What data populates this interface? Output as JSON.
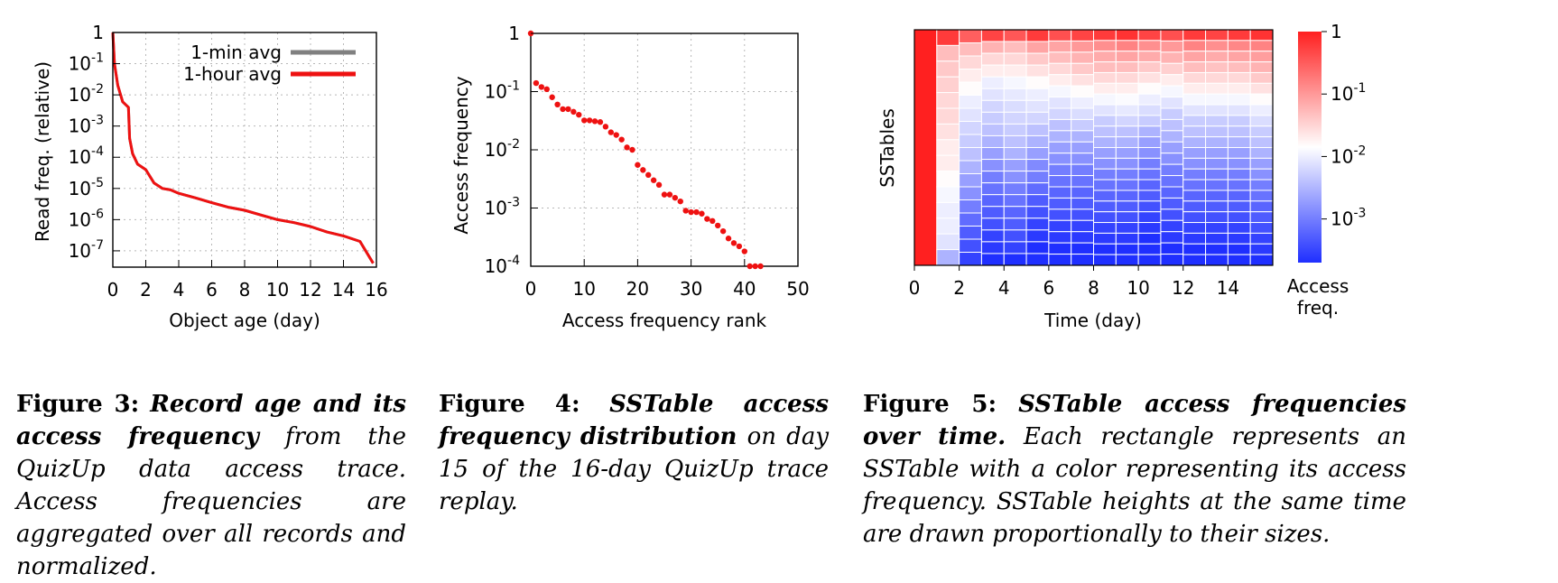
{
  "chart_data": [
    {
      "type": "line",
      "xlabel": "Object age (day)",
      "ylabel": "Read freq. (relative)",
      "xlim": [
        0,
        16
      ],
      "ylim": [
        3e-08,
        1
      ],
      "yscale": "log",
      "xticks": [
        0,
        2,
        4,
        6,
        8,
        10,
        12,
        14,
        16
      ],
      "ytick_labels": [
        {
          "base": "1",
          "exp": "",
          "value": 1
        },
        {
          "base": "10",
          "exp": "-1",
          "value": 0.1
        },
        {
          "base": "10",
          "exp": "-2",
          "value": 0.01
        },
        {
          "base": "10",
          "exp": "-3",
          "value": 0.001
        },
        {
          "base": "10",
          "exp": "-4",
          "value": 0.0001
        },
        {
          "base": "10",
          "exp": "-5",
          "value": 1e-05
        },
        {
          "base": "10",
          "exp": "-6",
          "value": 1e-06
        },
        {
          "base": "10",
          "exp": "-7",
          "value": 1e-07
        }
      ],
      "grid": true,
      "legend_position": "top-right",
      "series": [
        {
          "name": "1-min avg",
          "color": "#808080",
          "x": [
            0,
            0.1,
            0.3,
            0.6,
            0.95,
            1.02,
            1.2,
            1.5,
            2,
            2.5,
            3,
            3.5,
            4,
            5,
            6,
            7,
            8,
            9,
            10,
            11,
            12,
            13,
            14,
            15,
            15.8
          ],
          "y": [
            1,
            0.1,
            0.02,
            0.006,
            0.004,
            0.0004,
            0.00013,
            6e-05,
            4e-05,
            1.5e-05,
            1e-05,
            9e-06,
            7e-06,
            5e-06,
            3.5e-06,
            2.5e-06,
            2e-06,
            1.4e-06,
            1e-06,
            8e-07,
            6e-07,
            4e-07,
            3e-07,
            2e-07,
            4e-08
          ]
        },
        {
          "name": "1-hour avg",
          "color": "#ee1111",
          "x": [
            0,
            0.1,
            0.3,
            0.6,
            0.95,
            1.02,
            1.2,
            1.5,
            2,
            2.5,
            3,
            3.5,
            4,
            5,
            6,
            7,
            8,
            9,
            10,
            11,
            12,
            13,
            14,
            15,
            15.8
          ],
          "y": [
            1,
            0.1,
            0.02,
            0.006,
            0.004,
            0.0004,
            0.00013,
            6e-05,
            4e-05,
            1.5e-05,
            1e-05,
            9e-06,
            7e-06,
            5e-06,
            3.5e-06,
            2.5e-06,
            2e-06,
            1.4e-06,
            1e-06,
            8e-07,
            6e-07,
            4e-07,
            3e-07,
            2e-07,
            4e-08
          ]
        }
      ]
    },
    {
      "type": "scatter",
      "xlabel": "Access frequency rank",
      "ylabel": "Access frequency",
      "xlim": [
        0,
        50
      ],
      "ylim": [
        0.0001,
        1
      ],
      "yscale": "log",
      "xticks": [
        0,
        10,
        20,
        30,
        40,
        50
      ],
      "ytick_labels": [
        {
          "base": "1",
          "exp": "",
          "value": 1
        },
        {
          "base": "10",
          "exp": "-1",
          "value": 0.1
        },
        {
          "base": "10",
          "exp": "-2",
          "value": 0.01
        },
        {
          "base": "10",
          "exp": "-3",
          "value": 0.001
        },
        {
          "base": "10",
          "exp": "-4",
          "value": 0.0001
        }
      ],
      "grid": true,
      "color": "#ee1111",
      "x": [
        0,
        1,
        2,
        3,
        4,
        5,
        6,
        7,
        8,
        9,
        10,
        11,
        12,
        13,
        14,
        15,
        16,
        17,
        18,
        19,
        20,
        21,
        22,
        23,
        24,
        25,
        26,
        27,
        28,
        29,
        30,
        31,
        32,
        33,
        34,
        35,
        36,
        37,
        38,
        39,
        40,
        41,
        42,
        43
      ],
      "y": [
        1,
        0.14,
        0.12,
        0.11,
        0.08,
        0.06,
        0.05,
        0.05,
        0.045,
        0.04,
        0.032,
        0.032,
        0.031,
        0.03,
        0.025,
        0.02,
        0.018,
        0.015,
        0.011,
        0.01,
        0.0055,
        0.0045,
        0.0037,
        0.003,
        0.0025,
        0.0017,
        0.0017,
        0.0015,
        0.0013,
        0.0009,
        0.00085,
        0.00085,
        0.0008,
        0.00065,
        0.0006,
        0.0005,
        0.0004,
        0.0003,
        0.00025,
        0.00022,
        0.00018,
        0.0001,
        0.0001,
        0.0001
      ]
    },
    {
      "type": "heatmap",
      "xlabel": "Time (day)",
      "ylabel": "SSTables",
      "xlim": [
        0,
        16
      ],
      "xticks": [
        0,
        2,
        4,
        6,
        8,
        10,
        12,
        14
      ],
      "colorbar": {
        "label_line1": "Access",
        "label_line2": "freq.",
        "range": [
          0.0002,
          1
        ],
        "tick_labels": [
          {
            "base": "1",
            "exp": "",
            "value": 1
          },
          {
            "base": "10",
            "exp": "-1",
            "value": 0.1
          },
          {
            "base": "10",
            "exp": "-2",
            "value": 0.01
          },
          {
            "base": "10",
            "exp": "-3",
            "value": 0.001
          }
        ],
        "colors": [
          "#1f2fff",
          "#ffffff",
          "#ff2020"
        ]
      },
      "columns": [
        {
          "day": 0,
          "cells": [
            1.0
          ]
        },
        {
          "day": 1,
          "cells": [
            0.6,
            0.05,
            0.04,
            0.035,
            0.03,
            0.03,
            0.025,
            0.02,
            0.02,
            0.015,
            0.012,
            0.01,
            0.01,
            0.008,
            0.003
          ]
        },
        {
          "day": 2,
          "cells": [
            0.3,
            0.05,
            0.03,
            0.02,
            0.015,
            0.01,
            0.008,
            0.006,
            0.005,
            0.004,
            0.003,
            0.002,
            0.0015,
            0.001,
            0.0007,
            0.0005,
            0.0004,
            0.0003
          ]
        },
        {
          "day": 3,
          "cells": [
            0.5,
            0.06,
            0.03,
            0.02,
            0.01,
            0.008,
            0.006,
            0.005,
            0.004,
            0.003,
            0.002,
            0.0015,
            0.001,
            0.0008,
            0.0006,
            0.0005,
            0.0004,
            0.0003,
            0.00025,
            0.0002
          ]
        },
        {
          "day": 4,
          "cells": [
            0.35,
            0.05,
            0.03,
            0.02,
            0.012,
            0.009,
            0.007,
            0.006,
            0.005,
            0.004,
            0.003,
            0.002,
            0.0015,
            0.001,
            0.0008,
            0.0006,
            0.0005,
            0.0004,
            0.0003,
            0.0002
          ]
        },
        {
          "day": 5,
          "cells": [
            0.6,
            0.08,
            0.04,
            0.025,
            0.015,
            0.01,
            0.008,
            0.006,
            0.004,
            0.003,
            0.002,
            0.0013,
            0.001,
            0.0007,
            0.0005,
            0.0004,
            0.0003,
            0.00025,
            0.0002,
            0.0002
          ]
        },
        {
          "day": 6,
          "cells": [
            0.4,
            0.08,
            0.05,
            0.03,
            0.02,
            0.012,
            0.008,
            0.006,
            0.004,
            0.003,
            0.002,
            0.0015,
            0.001,
            0.0008,
            0.0006,
            0.0005,
            0.0004,
            0.0003,
            0.00025,
            0.0002,
            0.0002
          ]
        },
        {
          "day": 7,
          "cells": [
            0.5,
            0.1,
            0.06,
            0.04,
            0.025,
            0.015,
            0.01,
            0.007,
            0.005,
            0.003,
            0.002,
            0.0015,
            0.001,
            0.0008,
            0.0006,
            0.0005,
            0.0004,
            0.0003,
            0.00025,
            0.0002,
            0.0002
          ]
        },
        {
          "day": 8,
          "cells": [
            0.6,
            0.12,
            0.07,
            0.05,
            0.03,
            0.02,
            0.012,
            0.008,
            0.005,
            0.004,
            0.003,
            0.002,
            0.0015,
            0.001,
            0.0008,
            0.0006,
            0.0005,
            0.0004,
            0.0003,
            0.00025,
            0.0002,
            0.0002
          ]
        },
        {
          "day": 9,
          "cells": [
            0.7,
            0.15,
            0.08,
            0.05,
            0.03,
            0.02,
            0.013,
            0.009,
            0.006,
            0.004,
            0.003,
            0.002,
            0.0015,
            0.001,
            0.0008,
            0.0006,
            0.0005,
            0.0004,
            0.0003,
            0.00025,
            0.0002,
            0.0002
          ]
        },
        {
          "day": 10,
          "cells": [
            0.5,
            0.12,
            0.07,
            0.04,
            0.025,
            0.015,
            0.01,
            0.007,
            0.005,
            0.003,
            0.002,
            0.0015,
            0.001,
            0.0008,
            0.0006,
            0.0005,
            0.0004,
            0.0003,
            0.00025,
            0.0002,
            0.0002,
            0.0002
          ]
        },
        {
          "day": 11,
          "cells": [
            0.4,
            0.1,
            0.06,
            0.035,
            0.02,
            0.012,
            0.008,
            0.005,
            0.004,
            0.003,
            0.002,
            0.0015,
            0.001,
            0.0008,
            0.0006,
            0.0005,
            0.0004,
            0.0003,
            0.00025,
            0.0002,
            0.0002
          ]
        },
        {
          "day": 12,
          "cells": [
            0.6,
            0.15,
            0.08,
            0.05,
            0.03,
            0.02,
            0.012,
            0.008,
            0.005,
            0.004,
            0.003,
            0.002,
            0.0015,
            0.001,
            0.0008,
            0.0006,
            0.0005,
            0.0004,
            0.0003,
            0.00025,
            0.0002,
            0.0002
          ]
        },
        {
          "day": 13,
          "cells": [
            0.5,
            0.12,
            0.07,
            0.045,
            0.03,
            0.02,
            0.012,
            0.008,
            0.005,
            0.004,
            0.003,
            0.002,
            0.0015,
            0.001,
            0.0008,
            0.0006,
            0.0005,
            0.0004,
            0.0003,
            0.00025,
            0.0002,
            0.0002
          ]
        },
        {
          "day": 14,
          "cells": [
            0.6,
            0.14,
            0.08,
            0.05,
            0.03,
            0.02,
            0.012,
            0.008,
            0.005,
            0.004,
            0.003,
            0.002,
            0.0015,
            0.001,
            0.0008,
            0.0006,
            0.0005,
            0.0004,
            0.0003,
            0.00025,
            0.0002,
            0.0002
          ]
        },
        {
          "day": 15,
          "cells": [
            0.7,
            0.15,
            0.09,
            0.06,
            0.04,
            0.025,
            0.015,
            0.01,
            0.007,
            0.005,
            0.004,
            0.003,
            0.002,
            0.0015,
            0.001,
            0.0008,
            0.0006,
            0.0005,
            0.0004,
            0.0003,
            0.00025,
            0.0002
          ]
        }
      ]
    }
  ],
  "captions": [
    {
      "label": "Figure 3:",
      "bold_italic": "Record age and its access frequency",
      "rest": "from the QuizUp data access trace. Access frequencies are aggregated over all records and normalized."
    },
    {
      "label": "Figure 4:",
      "bold_italic": "SSTable access frequency distribution",
      "rest": "on day 15 of the 16-day QuizUp trace replay."
    },
    {
      "label": "Figure 5:",
      "bold_italic": "SSTable access frequencies over time.",
      "rest": "Each rectangle represents an SSTable with a color representing its access frequency. SSTable heights at the same time are drawn proportionally to their sizes."
    }
  ]
}
